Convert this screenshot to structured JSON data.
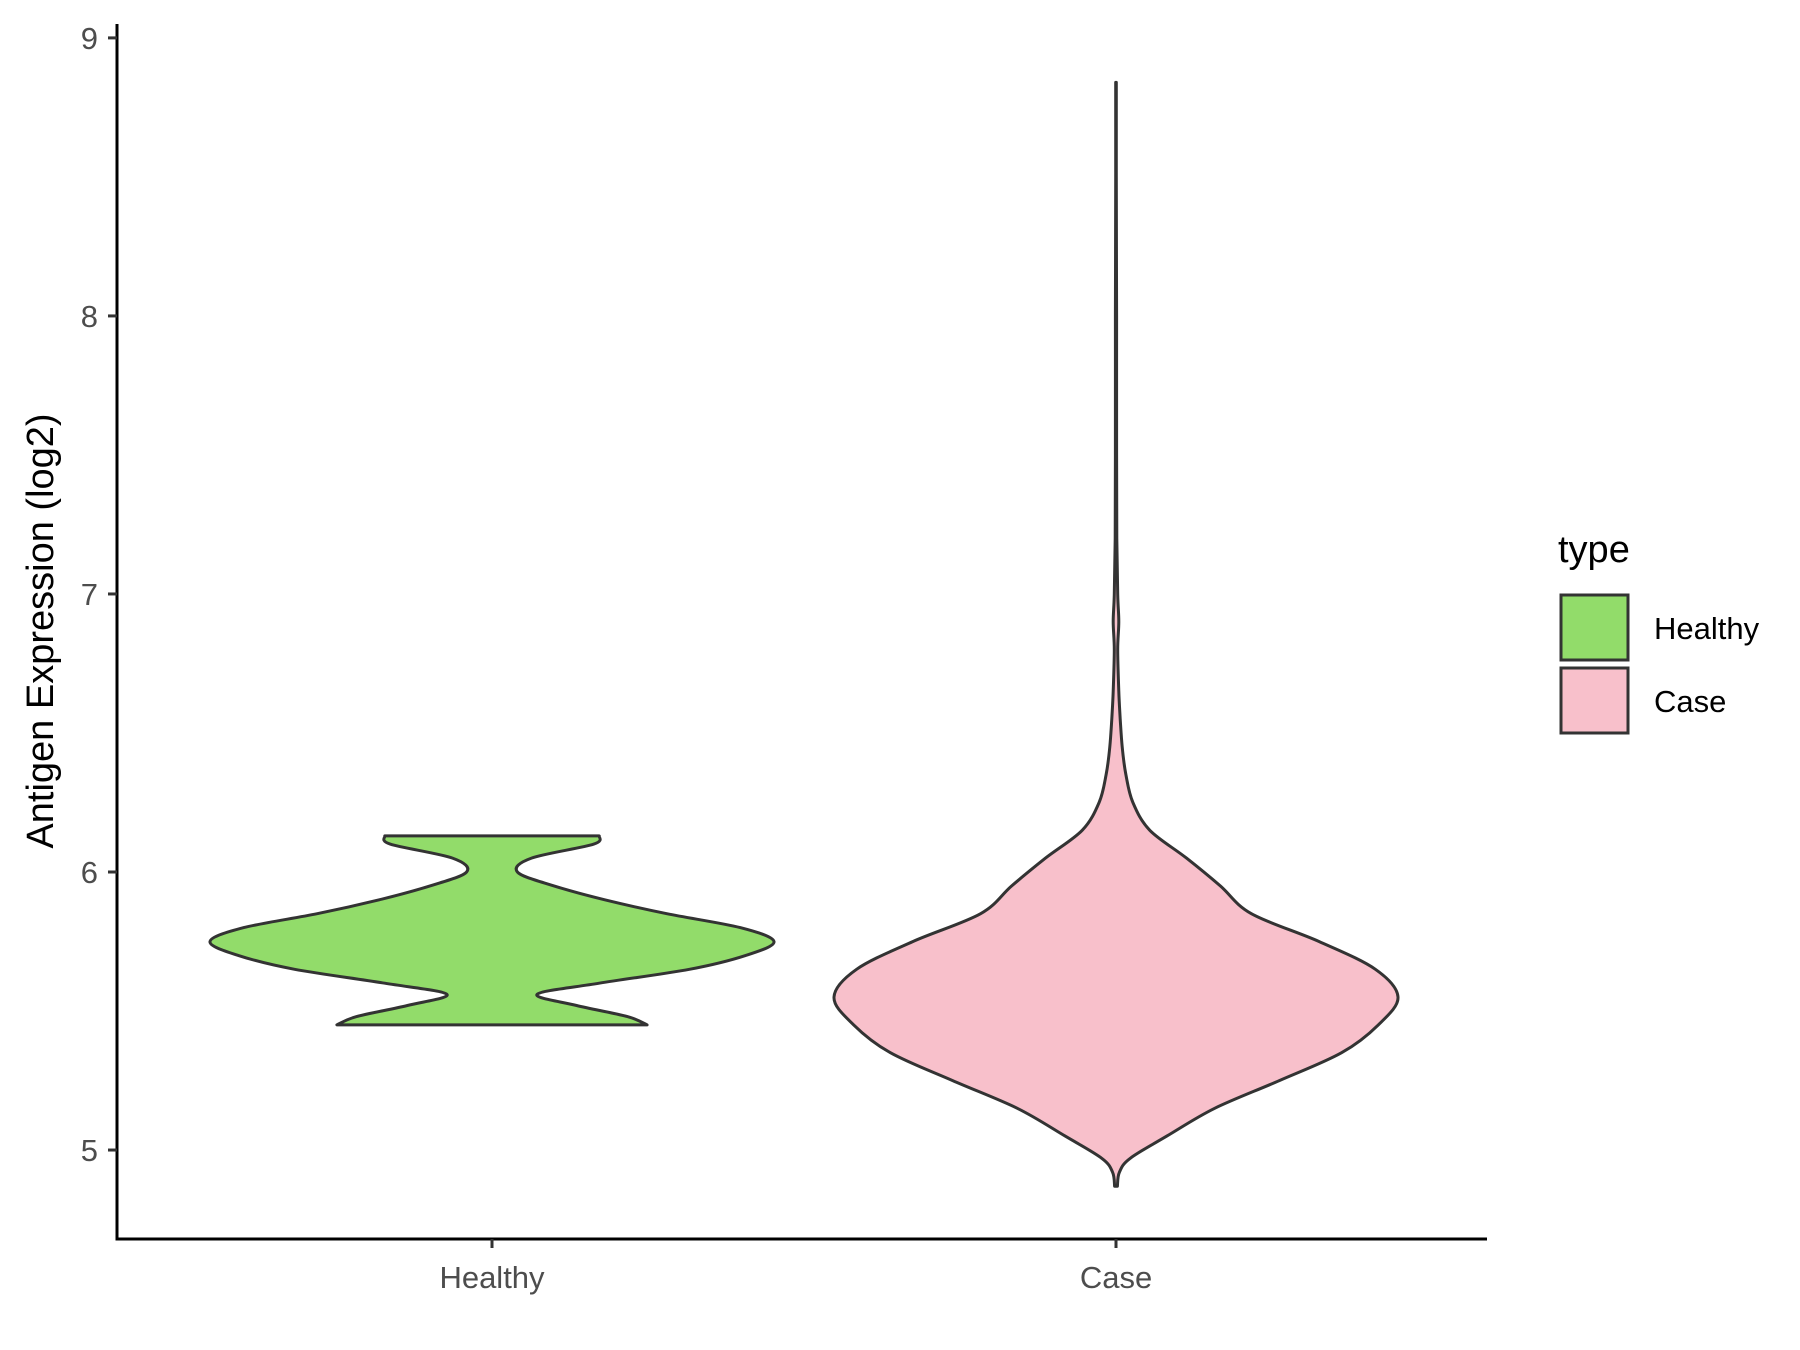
{
  "chart_data": {
    "type": "violin",
    "ylabel": "Antigen Expression (log2)",
    "xlabel": "",
    "categories": [
      "Healthy",
      "Case"
    ],
    "ylim": [
      4.68,
      9.05
    ],
    "yticks": [
      5,
      6,
      7,
      8,
      9
    ],
    "legend": {
      "title": "type",
      "placement": "right",
      "entries": [
        "Healthy",
        "Case"
      ]
    },
    "grid": false,
    "series": [
      {
        "category": "Healthy",
        "color": "#92dc6a",
        "range": [
          5.45,
          6.13
        ],
        "density_profile": [
          [
            5.45,
            0.55
          ],
          [
            5.48,
            0.48
          ],
          [
            5.52,
            0.3
          ],
          [
            5.56,
            0.16
          ],
          [
            5.6,
            0.38
          ],
          [
            5.65,
            0.7
          ],
          [
            5.7,
            0.9
          ],
          [
            5.75,
            1.0
          ],
          [
            5.8,
            0.88
          ],
          [
            5.85,
            0.62
          ],
          [
            5.9,
            0.4
          ],
          [
            5.95,
            0.22
          ],
          [
            6.0,
            0.09
          ],
          [
            6.05,
            0.14
          ],
          [
            6.1,
            0.36
          ],
          [
            6.13,
            0.38
          ]
        ]
      },
      {
        "category": "Case",
        "color": "#f8c0cb",
        "range": [
          4.87,
          8.84
        ],
        "density_profile": [
          [
            4.87,
            0.005
          ],
          [
            4.92,
            0.012
          ],
          [
            4.97,
            0.05
          ],
          [
            5.05,
            0.18
          ],
          [
            5.15,
            0.35
          ],
          [
            5.25,
            0.58
          ],
          [
            5.35,
            0.8
          ],
          [
            5.45,
            0.93
          ],
          [
            5.55,
            1.0
          ],
          [
            5.65,
            0.92
          ],
          [
            5.75,
            0.72
          ],
          [
            5.85,
            0.48
          ],
          [
            5.95,
            0.37
          ],
          [
            6.05,
            0.25
          ],
          [
            6.15,
            0.12
          ],
          [
            6.25,
            0.06
          ],
          [
            6.35,
            0.035
          ],
          [
            6.45,
            0.022
          ],
          [
            6.55,
            0.015
          ],
          [
            6.65,
            0.01
          ],
          [
            6.8,
            0.006
          ],
          [
            6.9,
            0.01
          ],
          [
            7.0,
            0.006
          ],
          [
            7.2,
            0.003
          ],
          [
            7.5,
            0.002
          ],
          [
            8.0,
            0.002
          ],
          [
            8.5,
            0.001
          ],
          [
            8.84,
            0.001
          ]
        ]
      }
    ]
  }
}
